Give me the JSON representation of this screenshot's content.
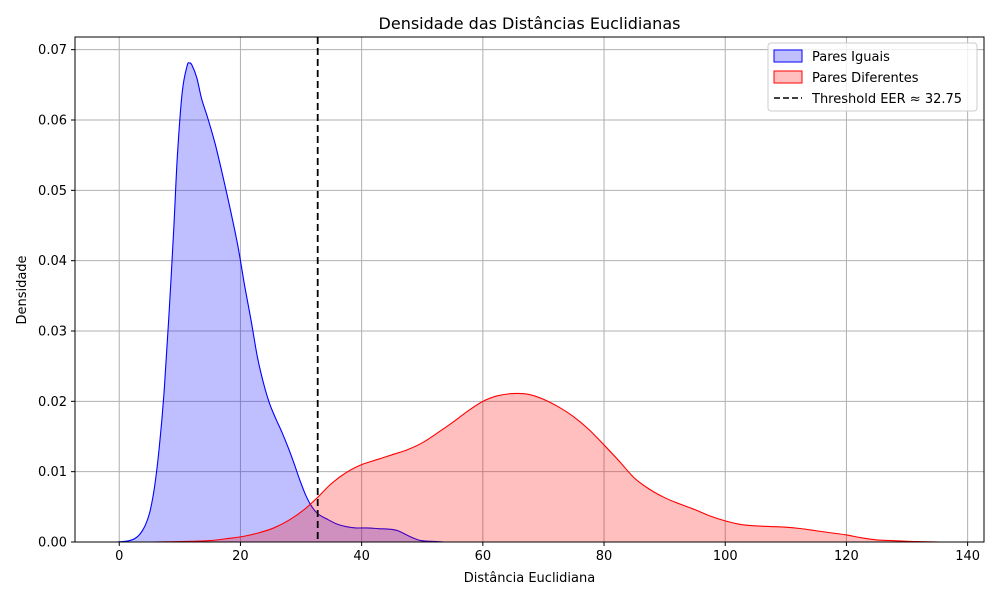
{
  "chart_data": {
    "type": "area",
    "title": "Densidade das Distâncias Euclidianas",
    "xlabel": "Distância Euclidiana",
    "ylabel": "Densidade",
    "xlim": [
      -7.3,
      142.7
    ],
    "ylim": [
      0,
      0.0718
    ],
    "xticks": [
      0,
      20,
      40,
      60,
      80,
      100,
      120,
      140
    ],
    "yticks": [
      0.0,
      0.01,
      0.02,
      0.03,
      0.04,
      0.05,
      0.06,
      0.07
    ],
    "ytick_labels": [
      "0.00",
      "0.01",
      "0.02",
      "0.03",
      "0.04",
      "0.05",
      "0.06",
      "0.07"
    ],
    "grid": true,
    "legend_position": "top-right",
    "series": [
      {
        "name": "Pares Iguais",
        "line_color": "#0000ff",
        "fill_color": "#0000ff",
        "fill_opacity": 0.25,
        "points": [
          [
            -0.3,
            0.0
          ],
          [
            0.9,
            0.0001
          ],
          [
            1.7,
            0.0002
          ],
          [
            2.6,
            0.0005
          ],
          [
            3.4,
            0.0011
          ],
          [
            4.2,
            0.0022
          ],
          [
            5.0,
            0.0041
          ],
          [
            5.8,
            0.0077
          ],
          [
            6.6,
            0.0134
          ],
          [
            7.4,
            0.0213
          ],
          [
            8.2,
            0.0322
          ],
          [
            9.0,
            0.0446
          ],
          [
            9.6,
            0.055
          ],
          [
            10.4,
            0.064
          ],
          [
            11.2,
            0.0677
          ],
          [
            11.6,
            0.0681
          ],
          [
            12.0,
            0.0678
          ],
          [
            12.8,
            0.066
          ],
          [
            13.6,
            0.063
          ],
          [
            14.6,
            0.0603
          ],
          [
            15.8,
            0.0567
          ],
          [
            17.0,
            0.0524
          ],
          [
            18.4,
            0.047
          ],
          [
            19.6,
            0.042
          ],
          [
            20.7,
            0.0364
          ],
          [
            21.8,
            0.0313
          ],
          [
            22.8,
            0.0263
          ],
          [
            23.8,
            0.0226
          ],
          [
            24.8,
            0.0197
          ],
          [
            25.8,
            0.0176
          ],
          [
            26.8,
            0.0157
          ],
          [
            27.8,
            0.0136
          ],
          [
            28.8,
            0.0113
          ],
          [
            29.8,
            0.0088
          ],
          [
            30.8,
            0.0066
          ],
          [
            31.8,
            0.005
          ],
          [
            32.8,
            0.004
          ],
          [
            34.2,
            0.0033
          ],
          [
            35.8,
            0.0026
          ],
          [
            37.4,
            0.0022
          ],
          [
            39.0,
            0.002
          ],
          [
            40.8,
            0.002
          ],
          [
            42.8,
            0.0019
          ],
          [
            44.8,
            0.0018
          ],
          [
            46.0,
            0.0016
          ],
          [
            47.2,
            0.0011
          ],
          [
            48.4,
            0.0006
          ],
          [
            49.8,
            0.0002
          ],
          [
            51.5,
            0.0001
          ],
          [
            53.6,
            0.0
          ]
        ]
      },
      {
        "name": "Pares Diferentes",
        "line_color": "#ff0000",
        "fill_color": "#ff0000",
        "fill_opacity": 0.25,
        "points": [
          [
            5.5,
            0.0
          ],
          [
            9.0,
            5e-05
          ],
          [
            12.0,
            0.0001
          ],
          [
            15.0,
            0.0002
          ],
          [
            18.0,
            0.0005
          ],
          [
            20.5,
            0.0008
          ],
          [
            23.0,
            0.0013
          ],
          [
            25.5,
            0.002
          ],
          [
            28.0,
            0.0031
          ],
          [
            30.5,
            0.0046
          ],
          [
            32.8,
            0.0064
          ],
          [
            35.0,
            0.0083
          ],
          [
            37.5,
            0.0099
          ],
          [
            40.0,
            0.011
          ],
          [
            42.5,
            0.0117
          ],
          [
            45.0,
            0.0124
          ],
          [
            47.5,
            0.0131
          ],
          [
            50.0,
            0.0141
          ],
          [
            52.5,
            0.0155
          ],
          [
            55.0,
            0.017
          ],
          [
            57.5,
            0.0186
          ],
          [
            60.0,
            0.02
          ],
          [
            62.5,
            0.0208
          ],
          [
            65.0,
            0.0211
          ],
          [
            67.5,
            0.021
          ],
          [
            70.0,
            0.0203
          ],
          [
            72.5,
            0.0192
          ],
          [
            75.0,
            0.0178
          ],
          [
            77.5,
            0.016
          ],
          [
            80.0,
            0.0138
          ],
          [
            82.5,
            0.0115
          ],
          [
            85.0,
            0.0091
          ],
          [
            87.5,
            0.0075
          ],
          [
            90.0,
            0.0063
          ],
          [
            92.5,
            0.0054
          ],
          [
            95.0,
            0.0046
          ],
          [
            97.5,
            0.0037
          ],
          [
            100.0,
            0.003
          ],
          [
            102.5,
            0.0025
          ],
          [
            105.0,
            0.0023
          ],
          [
            107.5,
            0.0022
          ],
          [
            110.0,
            0.0021
          ],
          [
            112.5,
            0.0019
          ],
          [
            115.0,
            0.0016
          ],
          [
            117.5,
            0.0013
          ],
          [
            120.0,
            0.001
          ],
          [
            122.5,
            0.0006
          ],
          [
            125.0,
            0.0003
          ],
          [
            127.5,
            0.0002
          ],
          [
            130.0,
            0.0001
          ],
          [
            132.5,
            5e-05
          ],
          [
            135.5,
            0.0
          ]
        ]
      }
    ],
    "threshold": {
      "name": "Threshold EER ≈ 32.75",
      "x": 32.75,
      "color": "#000000",
      "style": "dashed"
    }
  }
}
